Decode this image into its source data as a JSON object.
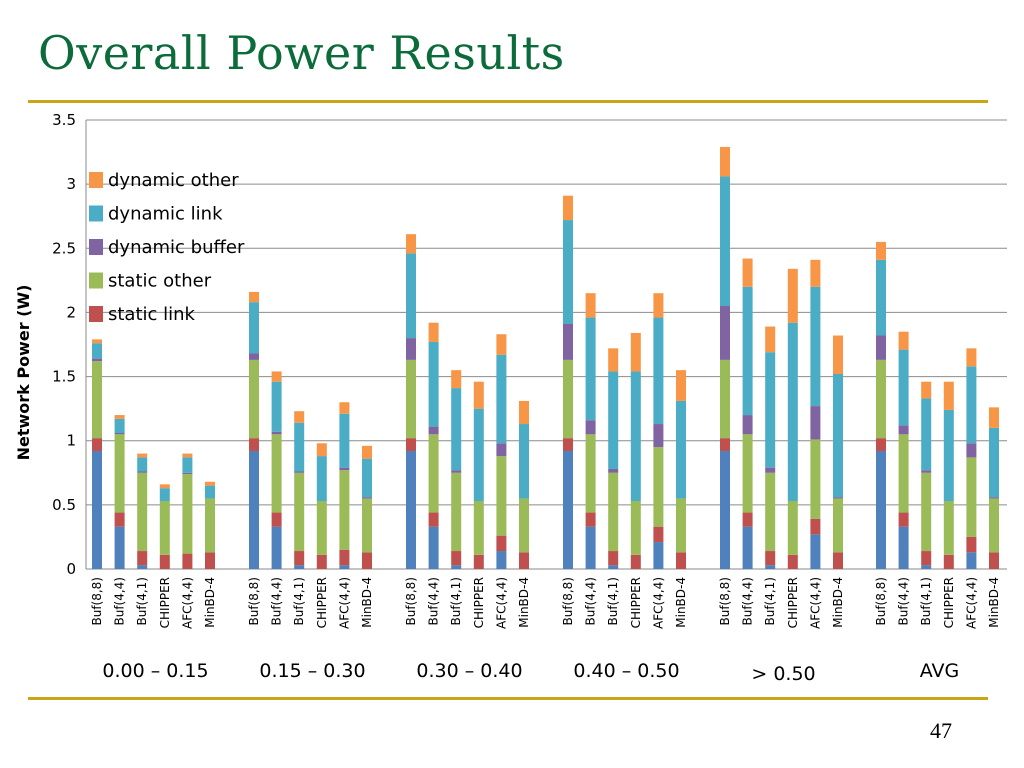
{
  "slide": {
    "title": "Overall Power Results",
    "page_number": "47"
  },
  "colors": {
    "title": "#0b6b3a",
    "rule": "#c9a51a",
    "static_link_base": "#4f81bd",
    "static_link": "#c0504d",
    "static_other": "#9bbb59",
    "dynamic_buffer": "#8064a2",
    "dynamic_link": "#4bacc6",
    "dynamic_other": "#f79646"
  },
  "chart_data": {
    "type": "bar",
    "stacked": true,
    "ylabel": "Network Power (W)",
    "ylim": [
      0,
      3.5
    ],
    "yticks": [
      "0",
      "0.5",
      "1",
      "1.5",
      "2",
      "2.5",
      "3",
      "3.5"
    ],
    "grid": true,
    "legend_position": "top-left",
    "legend": [
      "dynamic other",
      "dynamic link",
      "dynamic buffer",
      "static other",
      "static link"
    ],
    "groups": [
      {
        "label": "0.00 – 0.15",
        "bars": [
          {
            "label": "Buf(8,8)",
            "segments": [
              0.92,
              0.1,
              0.6,
              0.02,
              0.12,
              0.03
            ]
          },
          {
            "label": "Buf(4,4)",
            "segments": [
              0.33,
              0.11,
              0.61,
              0.01,
              0.11,
              0.03
            ]
          },
          {
            "label": "Buf(4,1)",
            "segments": [
              0.03,
              0.11,
              0.61,
              0.01,
              0.11,
              0.03
            ]
          },
          {
            "label": "CHIPPER",
            "segments": [
              0.0,
              0.11,
              0.42,
              0.0,
              0.1,
              0.03
            ]
          },
          {
            "label": "AFC(4,4)",
            "segments": [
              0.0,
              0.12,
              0.62,
              0.01,
              0.12,
              0.03
            ]
          },
          {
            "label": "MinBD-4",
            "segments": [
              0.0,
              0.13,
              0.42,
              0.0,
              0.1,
              0.03
            ]
          }
        ]
      },
      {
        "label": "0.15 – 0.30",
        "bars": [
          {
            "label": "Buf(8,8)",
            "segments": [
              0.92,
              0.1,
              0.61,
              0.05,
              0.4,
              0.08
            ]
          },
          {
            "label": "Buf(4,4)",
            "segments": [
              0.33,
              0.11,
              0.61,
              0.02,
              0.39,
              0.08
            ]
          },
          {
            "label": "Buf(4,1)",
            "segments": [
              0.03,
              0.11,
              0.61,
              0.01,
              0.38,
              0.09
            ]
          },
          {
            "label": "CHIPPER",
            "segments": [
              0.0,
              0.11,
              0.42,
              0.0,
              0.35,
              0.1
            ]
          },
          {
            "label": "AFC(4,4)",
            "segments": [
              0.03,
              0.12,
              0.62,
              0.02,
              0.42,
              0.09
            ]
          },
          {
            "label": "MinBD-4",
            "segments": [
              0.0,
              0.13,
              0.42,
              0.01,
              0.3,
              0.1
            ]
          }
        ]
      },
      {
        "label": "0.30 – 0.40",
        "bars": [
          {
            "label": "Buf(8,8)",
            "segments": [
              0.92,
              0.1,
              0.61,
              0.17,
              0.66,
              0.15
            ]
          },
          {
            "label": "Buf(4,4)",
            "segments": [
              0.33,
              0.11,
              0.61,
              0.06,
              0.66,
              0.15
            ]
          },
          {
            "label": "Buf(4,1)",
            "segments": [
              0.03,
              0.11,
              0.61,
              0.02,
              0.64,
              0.14
            ]
          },
          {
            "label": "CHIPPER",
            "segments": [
              0.0,
              0.11,
              0.42,
              0.0,
              0.72,
              0.21
            ]
          },
          {
            "label": "AFC(4,4)",
            "segments": [
              0.14,
              0.12,
              0.62,
              0.1,
              0.69,
              0.16
            ]
          },
          {
            "label": "MinBD-4",
            "segments": [
              0.0,
              0.13,
              0.42,
              0.0,
              0.58,
              0.18
            ]
          }
        ]
      },
      {
        "label": "0.40 – 0.50",
        "bars": [
          {
            "label": "Buf(8,8)",
            "segments": [
              0.92,
              0.1,
              0.61,
              0.28,
              0.81,
              0.19
            ]
          },
          {
            "label": "Buf(4,4)",
            "segments": [
              0.33,
              0.11,
              0.61,
              0.11,
              0.8,
              0.19
            ]
          },
          {
            "label": "Buf(4,1)",
            "segments": [
              0.03,
              0.11,
              0.61,
              0.03,
              0.76,
              0.18
            ]
          },
          {
            "label": "CHIPPER",
            "segments": [
              0.0,
              0.11,
              0.42,
              0.0,
              1.01,
              0.3
            ]
          },
          {
            "label": "AFC(4,4)",
            "segments": [
              0.21,
              0.12,
              0.62,
              0.18,
              0.83,
              0.19
            ]
          },
          {
            "label": "MinBD-4",
            "segments": [
              0.0,
              0.13,
              0.42,
              0.0,
              0.76,
              0.24
            ]
          }
        ]
      },
      {
        "label": "> 0.50",
        "bars": [
          {
            "label": "Buf(8,8)",
            "segments": [
              0.92,
              0.1,
              0.61,
              0.42,
              1.01,
              0.23
            ]
          },
          {
            "label": "Buf(4,4)",
            "segments": [
              0.33,
              0.11,
              0.61,
              0.15,
              1.0,
              0.22
            ]
          },
          {
            "label": "Buf(4,1)",
            "segments": [
              0.03,
              0.11,
              0.61,
              0.04,
              0.9,
              0.2
            ]
          },
          {
            "label": "CHIPPER",
            "segments": [
              0.0,
              0.11,
              0.42,
              0.0,
              1.39,
              0.42
            ]
          },
          {
            "label": "AFC(4,4)",
            "segments": [
              0.27,
              0.12,
              0.62,
              0.26,
              0.93,
              0.21
            ]
          },
          {
            "label": "MinBD-4",
            "segments": [
              0.0,
              0.13,
              0.42,
              0.01,
              0.96,
              0.3
            ]
          }
        ]
      },
      {
        "label": "AVG",
        "bars": [
          {
            "label": "Buf(8,8)",
            "segments": [
              0.92,
              0.1,
              0.61,
              0.19,
              0.59,
              0.14
            ]
          },
          {
            "label": "Buf(4,4)",
            "segments": [
              0.33,
              0.11,
              0.61,
              0.07,
              0.59,
              0.14
            ]
          },
          {
            "label": "Buf(4,1)",
            "segments": [
              0.03,
              0.11,
              0.61,
              0.02,
              0.56,
              0.13
            ]
          },
          {
            "label": "CHIPPER",
            "segments": [
              0.0,
              0.11,
              0.42,
              0.0,
              0.71,
              0.22
            ]
          },
          {
            "label": "AFC(4,4)",
            "segments": [
              0.13,
              0.12,
              0.62,
              0.11,
              0.6,
              0.14
            ]
          },
          {
            "label": "MinBD-4",
            "segments": [
              0.0,
              0.13,
              0.42,
              0.01,
              0.54,
              0.16
            ]
          }
        ]
      }
    ],
    "segment_colors": [
      "#4f81bd",
      "#c0504d",
      "#9bbb59",
      "#8064a2",
      "#4bacc6",
      "#f79646"
    ]
  }
}
